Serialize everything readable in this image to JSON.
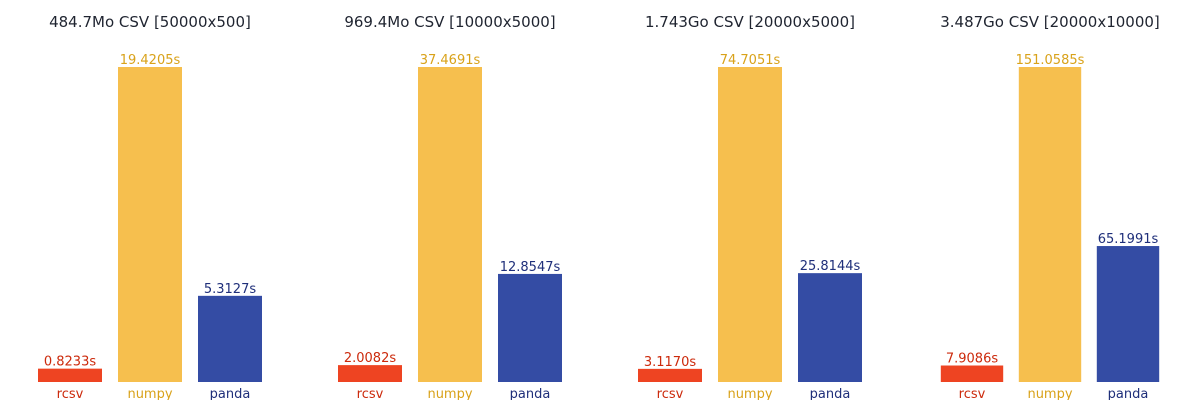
{
  "colors": {
    "rcsv_bar": "#ee4422",
    "numpy_bar": "#f6bf4e",
    "panda_bar": "#344ca4",
    "rcsv_text": "#cc2a0c",
    "numpy_text": "#d9a21a",
    "panda_text": "#1f2f7a",
    "title_text": "#1f2430"
  },
  "chart_data": [
    {
      "type": "bar",
      "title": "484.7Mo CSV [50000x500]",
      "categories": [
        "rcsv",
        "numpy",
        "panda"
      ],
      "values": [
        0.8233,
        19.4205,
        5.3127
      ],
      "value_labels": [
        "0.8233s",
        "19.4205s",
        "5.3127s"
      ],
      "ylim": [
        0,
        19.4205
      ],
      "grid": false
    },
    {
      "type": "bar",
      "title": "969.4Mo CSV [10000x5000]",
      "categories": [
        "rcsv",
        "numpy",
        "panda"
      ],
      "values": [
        2.0082,
        37.4691,
        12.8547
      ],
      "value_labels": [
        "2.0082s",
        "37.4691s",
        "12.8547s"
      ],
      "ylim": [
        0,
        37.4691
      ],
      "grid": false
    },
    {
      "type": "bar",
      "title": "1.743Go CSV [20000x5000]",
      "categories": [
        "rcsv",
        "numpy",
        "panda"
      ],
      "values": [
        3.117,
        74.7051,
        25.8144
      ],
      "value_labels": [
        "3.1170s",
        "74.7051s",
        "25.8144s"
      ],
      "ylim": [
        0,
        74.7051
      ],
      "grid": false
    },
    {
      "type": "bar",
      "title": "3.487Go CSV [20000x10000]",
      "categories": [
        "rcsv",
        "numpy",
        "panda"
      ],
      "values": [
        7.9086,
        151.0585,
        65.1991
      ],
      "value_labels": [
        "7.9086s",
        "151.0585s",
        "65.1991s"
      ],
      "ylim": [
        0,
        151.0585
      ],
      "grid": false
    }
  ]
}
